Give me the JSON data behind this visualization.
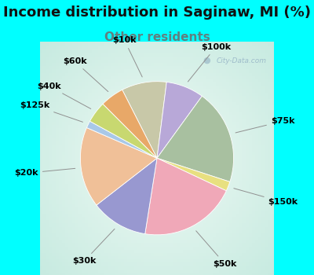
{
  "title": "Income distribution in Saginaw, MI (%)",
  "subtitle": "Other residents",
  "cyan_bg": "#00FFFF",
  "chart_bg_outer": "#c8e8d8",
  "chart_bg_inner": "#f0faf5",
  "subtitle_color": "#608080",
  "slices": [
    {
      "label": "$10k",
      "value": 9.5,
      "color": "#c8c8a8"
    },
    {
      "label": "$100k",
      "value": 8.0,
      "color": "#b8a8d8"
    },
    {
      "label": "$75k",
      "value": 20.0,
      "color": "#a8c0a0"
    },
    {
      "label": "$150k",
      "value": 2.0,
      "color": "#e8e080"
    },
    {
      "label": "$50k",
      "value": 20.5,
      "color": "#f0a8b8"
    },
    {
      "label": "$30k",
      "value": 12.0,
      "color": "#9898d0"
    },
    {
      "label": "$20k",
      "value": 17.0,
      "color": "#f0c098"
    },
    {
      "label": "$125k",
      "value": 1.5,
      "color": "#a8c8e8"
    },
    {
      "label": "$40k",
      "value": 4.5,
      "color": "#c8d870"
    },
    {
      "label": "$60k",
      "value": 5.0,
      "color": "#e8a868"
    }
  ],
  "title_fontsize": 13,
  "subtitle_fontsize": 11,
  "label_fontsize": 8,
  "watermark": "City-Data.com"
}
